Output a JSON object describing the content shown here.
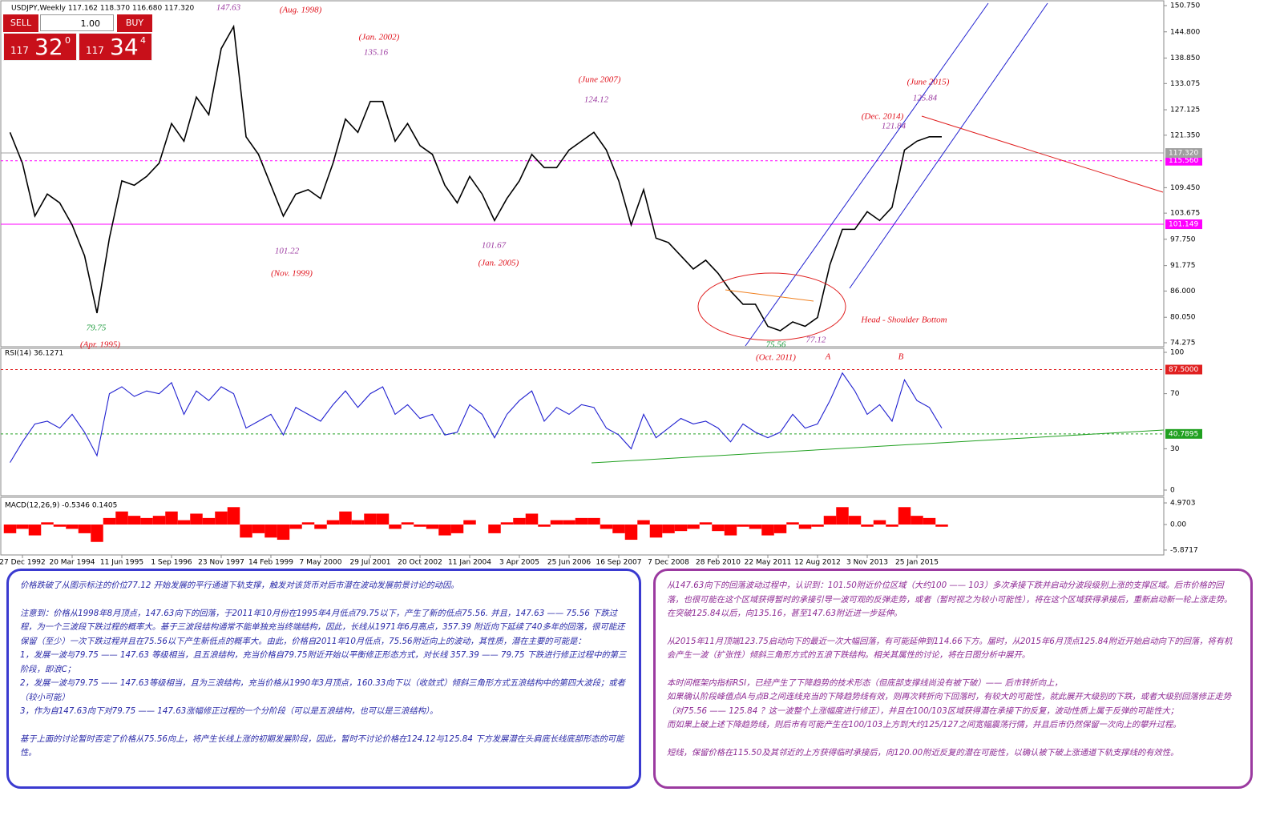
{
  "header": "USDJPY,Weekly  117.162 118.370 116.680 117.320",
  "trade_panel": {
    "sell": "SELL",
    "buy": "BUY",
    "lot": "1.00",
    "sell_price": [
      "117",
      "32",
      "0"
    ],
    "buy_price": [
      "117",
      "34",
      "4"
    ]
  },
  "chart_data": [
    {
      "type": "line",
      "color": "#000000",
      "categories": [
        null,
        "27 Dec 1992",
        null,
        null,
        null,
        "20 Mar 1994",
        null,
        null,
        null,
        "11 Jun 1995",
        null,
        null,
        null,
        "1 Sep 1996",
        null,
        null,
        null,
        "23 Nov 1997",
        null,
        null,
        null,
        "14 Feb 1999",
        null,
        null,
        null,
        "7 May 2000",
        null,
        null,
        null,
        "29 Jul 2001",
        null,
        null,
        null,
        "20 Oct 2002",
        null,
        null,
        null,
        "11 Jan 2004",
        null,
        null,
        null,
        "3 Apr 2005",
        null,
        null,
        null,
        "25 Jun 2006",
        null,
        null,
        null,
        "16 Sep 2007",
        null,
        null,
        null,
        "7 Dec 2008",
        null,
        null,
        null,
        "28 Feb 2010",
        null,
        null,
        null,
        "22 May 2011",
        null,
        null,
        null,
        "12 Aug 2012",
        null,
        null,
        null,
        "3 Nov 2013",
        null,
        null,
        null,
        "25 Jan 2015",
        null,
        null
      ],
      "values": [
        122,
        115,
        103,
        108,
        106,
        101,
        94,
        81,
        98,
        111,
        110,
        112,
        115,
        124,
        120,
        130,
        126,
        141,
        146,
        121,
        117,
        110,
        103,
        108,
        109,
        107,
        115,
        125,
        122,
        129,
        129,
        120,
        124,
        119,
        117,
        110,
        106,
        112,
        108,
        102,
        107,
        111,
        117,
        114,
        114,
        118,
        120,
        122,
        118,
        111,
        101,
        109,
        98,
        97,
        94,
        91,
        93,
        90,
        86,
        83,
        83,
        78,
        77,
        79,
        78,
        80,
        92,
        100,
        100,
        104,
        102,
        105,
        118,
        120,
        121,
        121
      ],
      "ylim": [
        74.275,
        150.75
      ],
      "yticks": [
        {
          "value": 74.275,
          "label": "74.275"
        },
        {
          "value": 80.05,
          "label": "80.050"
        },
        {
          "value": 86,
          "label": "86.000"
        },
        91.775,
        {
          "value": 97.75,
          "label": "97.750"
        },
        103.675,
        {
          "value": 109.45,
          "label": "109.450"
        },
        {
          "value": 121.35,
          "label": "121.350"
        },
        127.125,
        133.075,
        {
          "value": 138.85,
          "label": "138.850"
        },
        {
          "value": 144.8,
          "label": "144.800"
        },
        {
          "value": 150.75,
          "label": "150.750"
        }
      ],
      "hlines": [
        {
          "value": 115.56,
          "label": "115.560",
          "color": "#ff00ff",
          "dashed": true
        },
        {
          "value": 101.149,
          "label": "101.149",
          "color": "#ff00ff",
          "dashed": false
        },
        {
          "value": 117.32,
          "label": "117.320",
          "color": "#a0a0a0",
          "dashed": false
        }
      ],
      "annotations": [
        {
          "text": "147.63",
          "color": "#9b3aa0"
        },
        {
          "text": "(Aug. 1998)",
          "color": "#e0101a"
        },
        {
          "text": "(Jan. 2002)",
          "color": "#e0101a"
        },
        {
          "text": "135.16",
          "color": "#9b3aa0"
        },
        {
          "text": "(June 2007)",
          "color": "#e0101a"
        },
        {
          "text": "124.12",
          "color": "#9b3aa0"
        },
        {
          "text": "(June 2015)",
          "color": "#e0101a"
        },
        {
          "text": "125.84",
          "color": "#9b3aa0"
        },
        {
          "text": "(Dec. 2014)",
          "color": "#e0101a"
        },
        {
          "text": "121.84",
          "color": "#9b3aa0"
        },
        {
          "text": "101.22",
          "color": "#9b3aa0"
        },
        {
          "text": "(Nov. 1999)",
          "color": "#e0101a"
        },
        {
          "text": "101.67",
          "color": "#9b3aa0"
        },
        {
          "text": "(Jan. 2005)",
          "color": "#e0101a"
        },
        {
          "text": "79.75",
          "color": "#1a9a3a"
        },
        {
          "text": "(Apr. 1995)",
          "color": "#e0101a"
        },
        {
          "text": "75.56",
          "color": "#1a9a3a"
        },
        {
          "text": "(Oct. 2011)",
          "color": "#e0101a"
        },
        {
          "text": "77.12",
          "color": "#9b3aa0"
        },
        {
          "text": "Head - Shoulder Bottom",
          "color": "#e0101a"
        },
        {
          "text": "A",
          "color": "#e0101a"
        },
        {
          "text": "B",
          "color": "#e0101a"
        }
      ]
    },
    {
      "type": "line",
      "title": "RSI(14) 36.1271",
      "color": "#2020d0",
      "values": [
        20,
        35,
        48,
        50,
        45,
        55,
        42,
        25,
        70,
        75,
        68,
        72,
        70,
        78,
        55,
        72,
        65,
        75,
        70,
        45,
        50,
        55,
        40,
        60,
        55,
        50,
        62,
        72,
        60,
        70,
        75,
        55,
        62,
        52,
        55,
        40,
        42,
        62,
        55,
        38,
        55,
        65,
        72,
        50,
        60,
        55,
        62,
        60,
        45,
        40,
        30,
        55,
        38,
        45,
        52,
        48,
        50,
        45,
        35,
        48,
        42,
        38,
        42,
        55,
        45,
        48,
        65,
        85,
        72,
        55,
        62,
        50,
        80,
        65,
        60,
        45
      ],
      "ylim": [
        0,
        100
      ],
      "yticks": [
        0,
        30,
        70,
        100
      ],
      "hlines": [
        {
          "value": 87.5,
          "label": "87.5000",
          "color": "#e02020",
          "dashed": true
        },
        {
          "value": 40.7895,
          "label": "40.7895",
          "color": "#20a020",
          "dashed": true
        }
      ]
    },
    {
      "type": "bar",
      "title": "MACD(12,26,9) -0.5346 0.1405",
      "color": "#ff0000",
      "values": [
        -2,
        -1,
        -2.5,
        0.5,
        -0.5,
        -1,
        -2,
        -4,
        1.5,
        3,
        2,
        1.5,
        2,
        3,
        1,
        2.5,
        1.5,
        3,
        4,
        -3,
        -2,
        -3,
        -3.5,
        -1,
        0.5,
        -1,
        1,
        3,
        1,
        2.5,
        2.5,
        -1,
        0.5,
        -0.5,
        -1,
        -2.5,
        -2,
        1,
        0,
        -2,
        0.5,
        1.5,
        2.5,
        -0.5,
        1,
        1,
        1.5,
        1.5,
        -1,
        -2,
        -3.5,
        1,
        -3,
        -2,
        -1.5,
        -1,
        0.5,
        -1.5,
        -2.5,
        -0.5,
        -1,
        -2.5,
        -2,
        0.5,
        -1,
        -0.5,
        2,
        4,
        2,
        -0.5,
        1,
        -0.5,
        4,
        2,
        1.5,
        -0.5
      ],
      "ylim": [
        -6.81,
        6.08
      ],
      "yticks": [
        -5.8717,
        {
          "value": 0,
          "label": "0.00"
        },
        4.9703
      ]
    }
  ],
  "notes": {
    "left": [
      "价格跌破了从图示标注的价位77.12 开始发展的平行通道下轨支撑，触发对该货币对后市潜在波动发展前景讨论的动因。",
      "注意到：价格从1998年8月顶点，147.63向下的回落，于2011年10月份在1995年4月低点79.75以下，产生了新的低点75.56. 并且，147.63 —— 75.56 下跌过程，为一个三波段下跌过程的概率大。基于三波段结构通常不能单独充当终端结构，因此，长线从1971年6月高点，357.39 附近向下延续了40多年的回落，很可能还保留（至少）一次下跌过程并且在75.56以下产生新低点的概率大。由此，价格自2011年10月低点，75.56附近向上的波动，其性质，潜在主要的可能是：",
      "1，发展一波与79.75 —— 147.63 等级相当，且五浪结构，充当价格自79.75附近开始以平衡修正形态方式，对长线 357.39 —— 79.75 下跌进行修正过程中的第三阶段，即浪C；",
      "2，发展一波与79.75 —— 147.63等级相当，且为三浪结构，充当价格从1990年3月顶点，160.33向下以（收敛式）倾斜三角形方式五浪结构中的第四大波段；或者（较小可能）",
      "3，作为自147.63向下对79.75 —— 147.63涨幅修正过程的一个分阶段（可以是五浪结构，也可以是三浪结构）。",
      "基于上面的讨论暂时否定了价格从75.56向上，将产生长线上涨的初期发展阶段，因此，暂时不讨论价格在124.12与125.84 下方发展潜在头肩底长线底部形态的可能性。"
    ],
    "right": [
      "从147.63向下的回落波动过程中，认识到：101.50附近价位区域（大约100 —— 103）多次承接下跌并启动分波段级别上涨的支撑区域。后市价格的回落，也很可能在这个区域获得暂时的承接引导一波可观的反弹走势，或者（暂时视之为较小可能性），将在这个区域获得承接后，重新启动新一轮上涨走势。在突破125.84以后，向135.16，甚至147.63附近进一步延伸。",
      "从2015年11月顶端123.75启动向下的最近一次大幅回落，有可能延伸到114.66下方。届时，从2015年6月顶点125.84附近开始启动向下的回落，将有机会产生一波（扩张性）倾斜三角形方式的五浪下跌结构。相关其属性的讨论，将在日图分析中展开。",
      "本时间框架内指标RSI，已经产生了下降趋势的技术形态（但底部支撑线尚没有被下破）—— 后市转折向上，",
      "如果确认阶段峰值点A与点B之间连线充当的下降趋势线有效，则再次转折向下回落时，有较大的可能性，就此展开大级别的下跌，或者大级别回落修正走势（对75.56 —— 125.84 ？这一波整个上涨幅度进行修正），并且在100/103区域获得潜在承接下的反复，波动性质上属于反弹的可能性大；",
      "而如果上破上述下降趋势线，则后市有可能产生在100/103上方到大约125/127之间宽幅震荡行情，并且后市仍然保留一次向上的攀升过程。",
      "短线，保留价格在115.50及其邻近的上方获得临时承接后，向120.00附近反复的潜在可能性，以确认被下破上涨通道下轨支撑线的有效性。"
    ]
  }
}
